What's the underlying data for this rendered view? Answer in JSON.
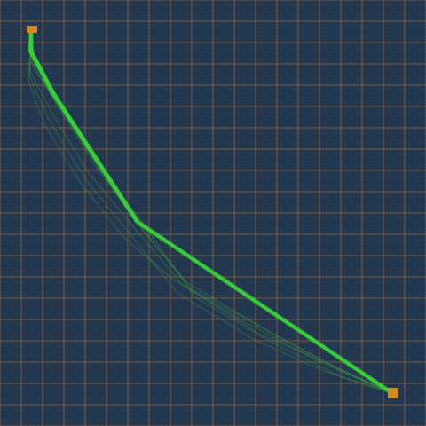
{
  "colors": {
    "background": "#243750",
    "grid_line": "#c9782a",
    "path_main": "#31c531",
    "path_faint": "#3fae46",
    "endpoint": "#d78a1c"
  },
  "icons": {
    "start": "start-marker-icon",
    "end": "end-marker-icon"
  },
  "scene": {
    "grid": true,
    "grid_divisions": 20,
    "trajectory_count": 14
  }
}
